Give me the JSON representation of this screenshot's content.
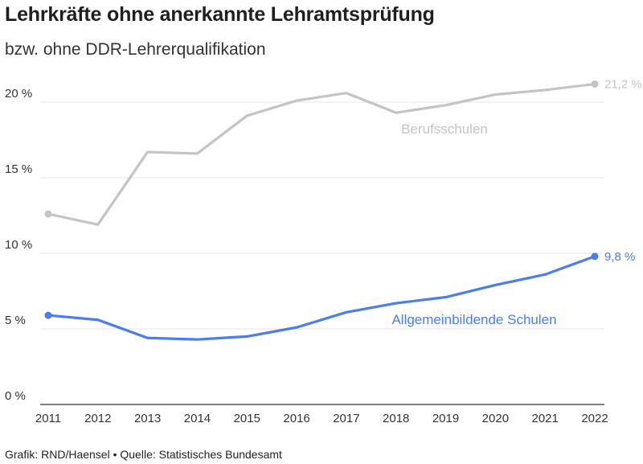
{
  "title": "Lehrkräfte ohne anerkannte Lehramtsprüfung",
  "subtitle": "bzw. ohne DDR-Lehrerqualifikation",
  "footer": "Grafik: RND/Haensel • Quelle: Statistisches Bundesamt",
  "colors": {
    "berufsschulen": "#c4c4c4",
    "allgemeinbildende": "#4a7df0",
    "grid": "#e4e4e4",
    "axis": "#333333"
  },
  "chart_data": {
    "type": "line",
    "x": [
      2011,
      2012,
      2013,
      2014,
      2015,
      2016,
      2017,
      2018,
      2019,
      2020,
      2021,
      2022
    ],
    "ylim": [
      0,
      22
    ],
    "yticks": [
      0,
      5,
      10,
      15,
      20
    ],
    "ytick_labels": [
      "0 %",
      "5 %",
      "10 %",
      "15 %",
      "20 %"
    ],
    "grid": true,
    "series": [
      {
        "name": "Berufsschulen",
        "values": [
          12.6,
          11.9,
          16.7,
          16.6,
          19.1,
          20.1,
          20.6,
          19.3,
          19.8,
          20.5,
          20.8,
          21.2
        ],
        "end_label": "21,2 %"
      },
      {
        "name": "Allgemeinbildende Schulen",
        "values": [
          5.9,
          5.6,
          4.4,
          4.3,
          4.5,
          5.1,
          6.1,
          6.7,
          7.1,
          7.9,
          8.6,
          9.8
        ],
        "end_label": "9,8 %"
      }
    ]
  }
}
